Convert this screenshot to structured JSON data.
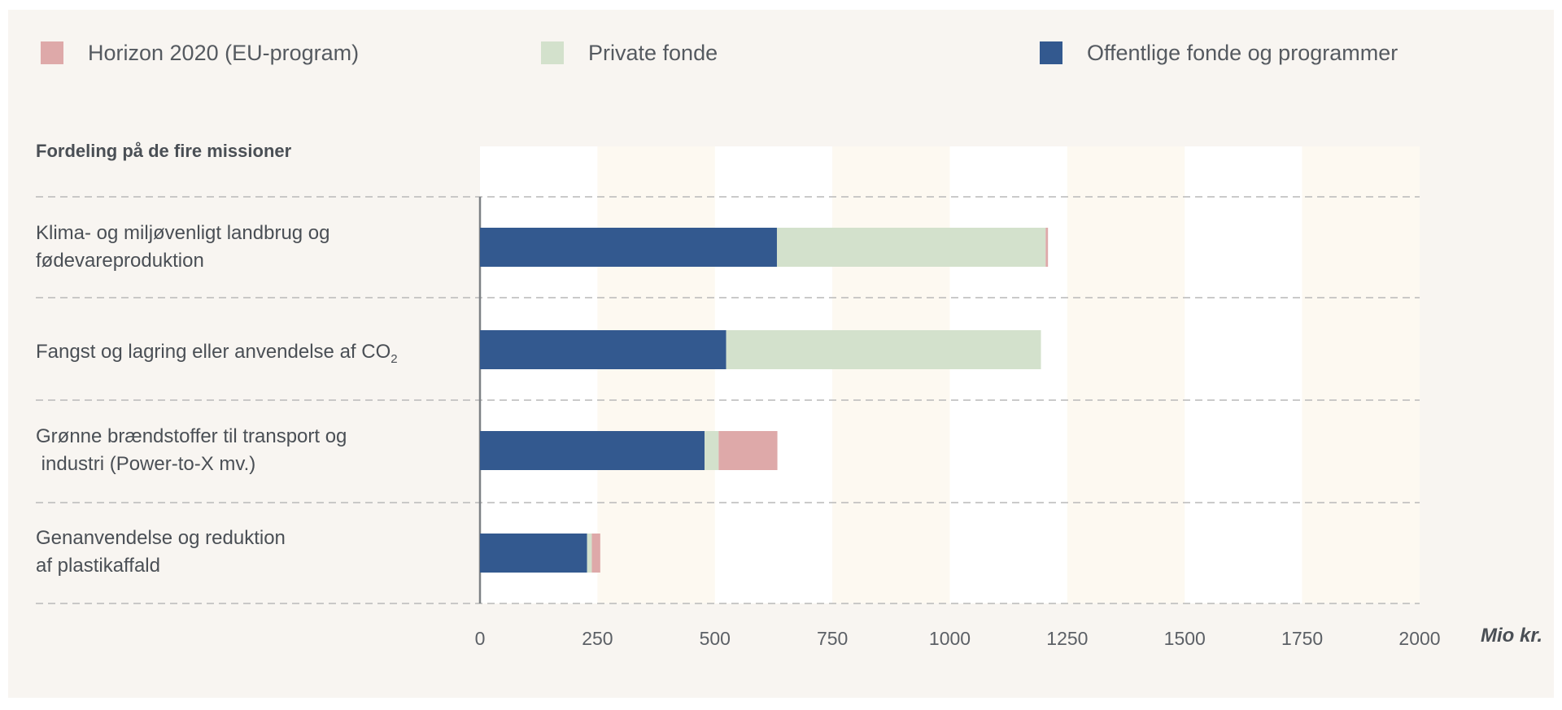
{
  "chart_data": {
    "type": "bar",
    "orientation": "horizontal",
    "stacked": true,
    "title": "Fordeling på de fire missioner",
    "categories": [
      {
        "line1": "Klima- og miljøvenligt landbrug og",
        "line2": "fødevareproduktion"
      },
      {
        "line1": "Fangst og lagring eller anvendelse af CO",
        "sub": "2",
        "line2": ""
      },
      {
        "line1": "Grønne brændstoffer til transport og",
        "line2": " industri (Power-to-X mv.)"
      },
      {
        "line1": "Genanvendelse og reduktion",
        "line2": "af plastikaffald"
      }
    ],
    "series": [
      {
        "name": "Offentlige fonde og programmer",
        "color": "#33598f",
        "values": [
          632,
          524,
          478,
          228
        ]
      },
      {
        "name": "Private fonde",
        "color": "#d3e1cc",
        "values": [
          572,
          670,
          30,
          10
        ]
      },
      {
        "name": "Horizon 2020 (EU-program)",
        "color": "#dea9a9",
        "values": [
          5,
          0,
          125,
          18
        ]
      }
    ],
    "xlim": [
      0,
      2000
    ],
    "xticks": [
      "0",
      "250",
      "500",
      "750",
      "1000",
      "1250",
      "1500",
      "1750",
      "2000"
    ],
    "xlabel": "Mio kr.",
    "legend_position": "top",
    "legend_order": [
      2,
      1,
      0
    ]
  }
}
